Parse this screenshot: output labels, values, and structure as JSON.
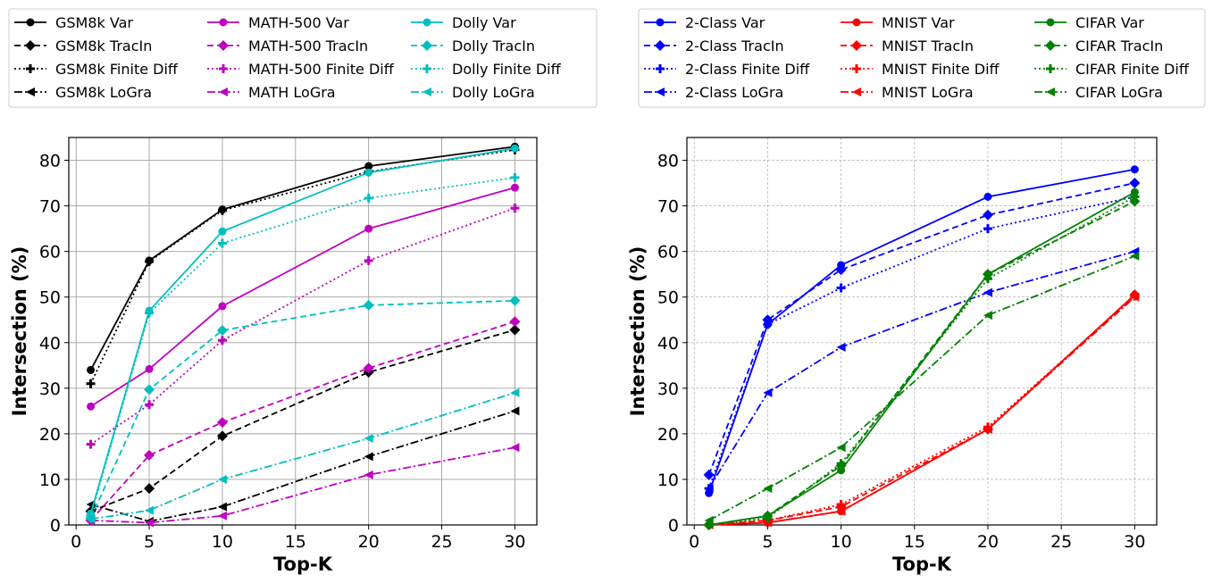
{
  "chart_data": [
    {
      "type": "line",
      "xlabel": "Top-K",
      "ylabel": "Intersection (%)",
      "xlim": [
        -0.5,
        31.5
      ],
      "ylim": [
        0,
        85
      ],
      "xticks": [
        0,
        5,
        10,
        15,
        20,
        25,
        30
      ],
      "yticks": [
        0,
        10,
        20,
        30,
        40,
        50,
        60,
        70,
        80
      ],
      "grid": "solid",
      "legend_position": "top",
      "x": [
        1,
        5,
        10,
        20,
        30
      ],
      "series": [
        {
          "name": "GSM8k Var",
          "color": "#000000",
          "style": "solid",
          "marker": "circle",
          "values": [
            34,
            58,
            69.2,
            78.7,
            83
          ]
        },
        {
          "name": "GSM8k TracIn",
          "color": "#000000",
          "style": "dashed",
          "marker": "diamond",
          "values": [
            3,
            8,
            19.5,
            33.5,
            42.8
          ]
        },
        {
          "name": "GSM8k Finite Diff",
          "color": "#000000",
          "style": "dotted",
          "marker": "plus",
          "values": [
            31,
            57.8,
            69,
            77.5,
            82.3
          ]
        },
        {
          "name": "GSM8k LoGra",
          "color": "#000000",
          "style": "dashdot",
          "marker": "triangle-left",
          "values": [
            4.5,
            0.8,
            4,
            15,
            25
          ]
        },
        {
          "name": "MATH-500 Var",
          "color": "#bf00bf",
          "style": "solid",
          "marker": "circle",
          "values": [
            26,
            34.2,
            48,
            65,
            74
          ]
        },
        {
          "name": "MATH-500 TracIn",
          "color": "#bf00bf",
          "style": "dashed",
          "marker": "diamond",
          "values": [
            1,
            15.3,
            22.5,
            34.4,
            44.6
          ]
        },
        {
          "name": "MATH-500 Finite Diff",
          "color": "#bf00bf",
          "style": "dotted",
          "marker": "plus",
          "values": [
            17.7,
            26.4,
            40.5,
            58,
            69.5
          ]
        },
        {
          "name": "MATH LoGra",
          "color": "#bf00bf",
          "style": "dashdot",
          "marker": "triangle-left",
          "values": [
            1,
            0.5,
            2,
            11,
            17
          ]
        },
        {
          "name": "Dolly Var",
          "color": "#00bfbf",
          "style": "solid",
          "marker": "circle",
          "values": [
            2.5,
            47,
            64.4,
            77.3,
            82.6
          ]
        },
        {
          "name": "Dolly TracIn",
          "color": "#00bfbf",
          "style": "dashed",
          "marker": "diamond",
          "values": [
            1.5,
            29.7,
            42.7,
            48.2,
            49.2
          ]
        },
        {
          "name": "Dolly Finite Diff",
          "color": "#00bfbf",
          "style": "dotted",
          "marker": "plus",
          "values": [
            2,
            46.5,
            61.8,
            71.7,
            76.2
          ]
        },
        {
          "name": "Dolly LoGra",
          "color": "#00bfbf",
          "style": "dashdot",
          "marker": "triangle-left",
          "values": [
            1.3,
            3.2,
            10,
            19,
            29
          ]
        }
      ]
    },
    {
      "type": "line",
      "xlabel": "Top-K",
      "ylabel": "Intersection (%)",
      "xlim": [
        -0.5,
        31.5
      ],
      "ylim": [
        0,
        85
      ],
      "xticks": [
        0,
        5,
        10,
        15,
        20,
        25,
        30
      ],
      "yticks": [
        0,
        10,
        20,
        30,
        40,
        50,
        60,
        70,
        80
      ],
      "grid": "dashed",
      "legend_position": "top",
      "x": [
        1,
        5,
        10,
        20,
        30
      ],
      "series": [
        {
          "name": "2-Class Var",
          "color": "#0000ff",
          "style": "solid",
          "marker": "circle",
          "values": [
            7,
            44,
            57,
            72,
            78
          ]
        },
        {
          "name": "2-Class TracIn",
          "color": "#0000ff",
          "style": "dashed",
          "marker": "diamond",
          "values": [
            11,
            45,
            56,
            68,
            75
          ]
        },
        {
          "name": "2-Class Finite Diff",
          "color": "#0000ff",
          "style": "dotted",
          "marker": "plus",
          "values": [
            8,
            44,
            52,
            65,
            72
          ]
        },
        {
          "name": "2-Class LoGra",
          "color": "#0000ff",
          "style": "dashdot",
          "marker": "triangle-left",
          "values": [
            8,
            29,
            39,
            51,
            60
          ]
        },
        {
          "name": "MNIST Var",
          "color": "#ff0000",
          "style": "solid",
          "marker": "circle",
          "values": [
            0,
            0.5,
            3,
            21,
            50.5
          ]
        },
        {
          "name": "MNIST TracIn",
          "color": "#ff0000",
          "style": "dashed",
          "marker": "diamond",
          "values": [
            0,
            1,
            4,
            21,
            50.5
          ]
        },
        {
          "name": "MNIST Finite Diff",
          "color": "#ff0000",
          "style": "dotted",
          "marker": "plus",
          "values": [
            0,
            1,
            4.5,
            21.5,
            50.2
          ]
        },
        {
          "name": "MNIST LoGra",
          "color": "#ff0000",
          "style": "dashdot",
          "marker": "triangle-left",
          "values": [
            0,
            0.5,
            3,
            21,
            50
          ]
        },
        {
          "name": "CIFAR Var",
          "color": "#008000",
          "style": "solid",
          "marker": "circle",
          "values": [
            0,
            2,
            12,
            55,
            73
          ]
        },
        {
          "name": "CIFAR TracIn",
          "color": "#008000",
          "style": "dashed",
          "marker": "diamond",
          "values": [
            0,
            2,
            13,
            55,
            71
          ]
        },
        {
          "name": "CIFAR Finite Diff",
          "color": "#008000",
          "style": "dotted",
          "marker": "plus",
          "values": [
            0,
            1.5,
            13.5,
            54,
            72
          ]
        },
        {
          "name": "CIFAR LoGra",
          "color": "#008000",
          "style": "dashdot",
          "marker": "triangle-left",
          "values": [
            1,
            8,
            17,
            46,
            59
          ]
        }
      ]
    }
  ]
}
